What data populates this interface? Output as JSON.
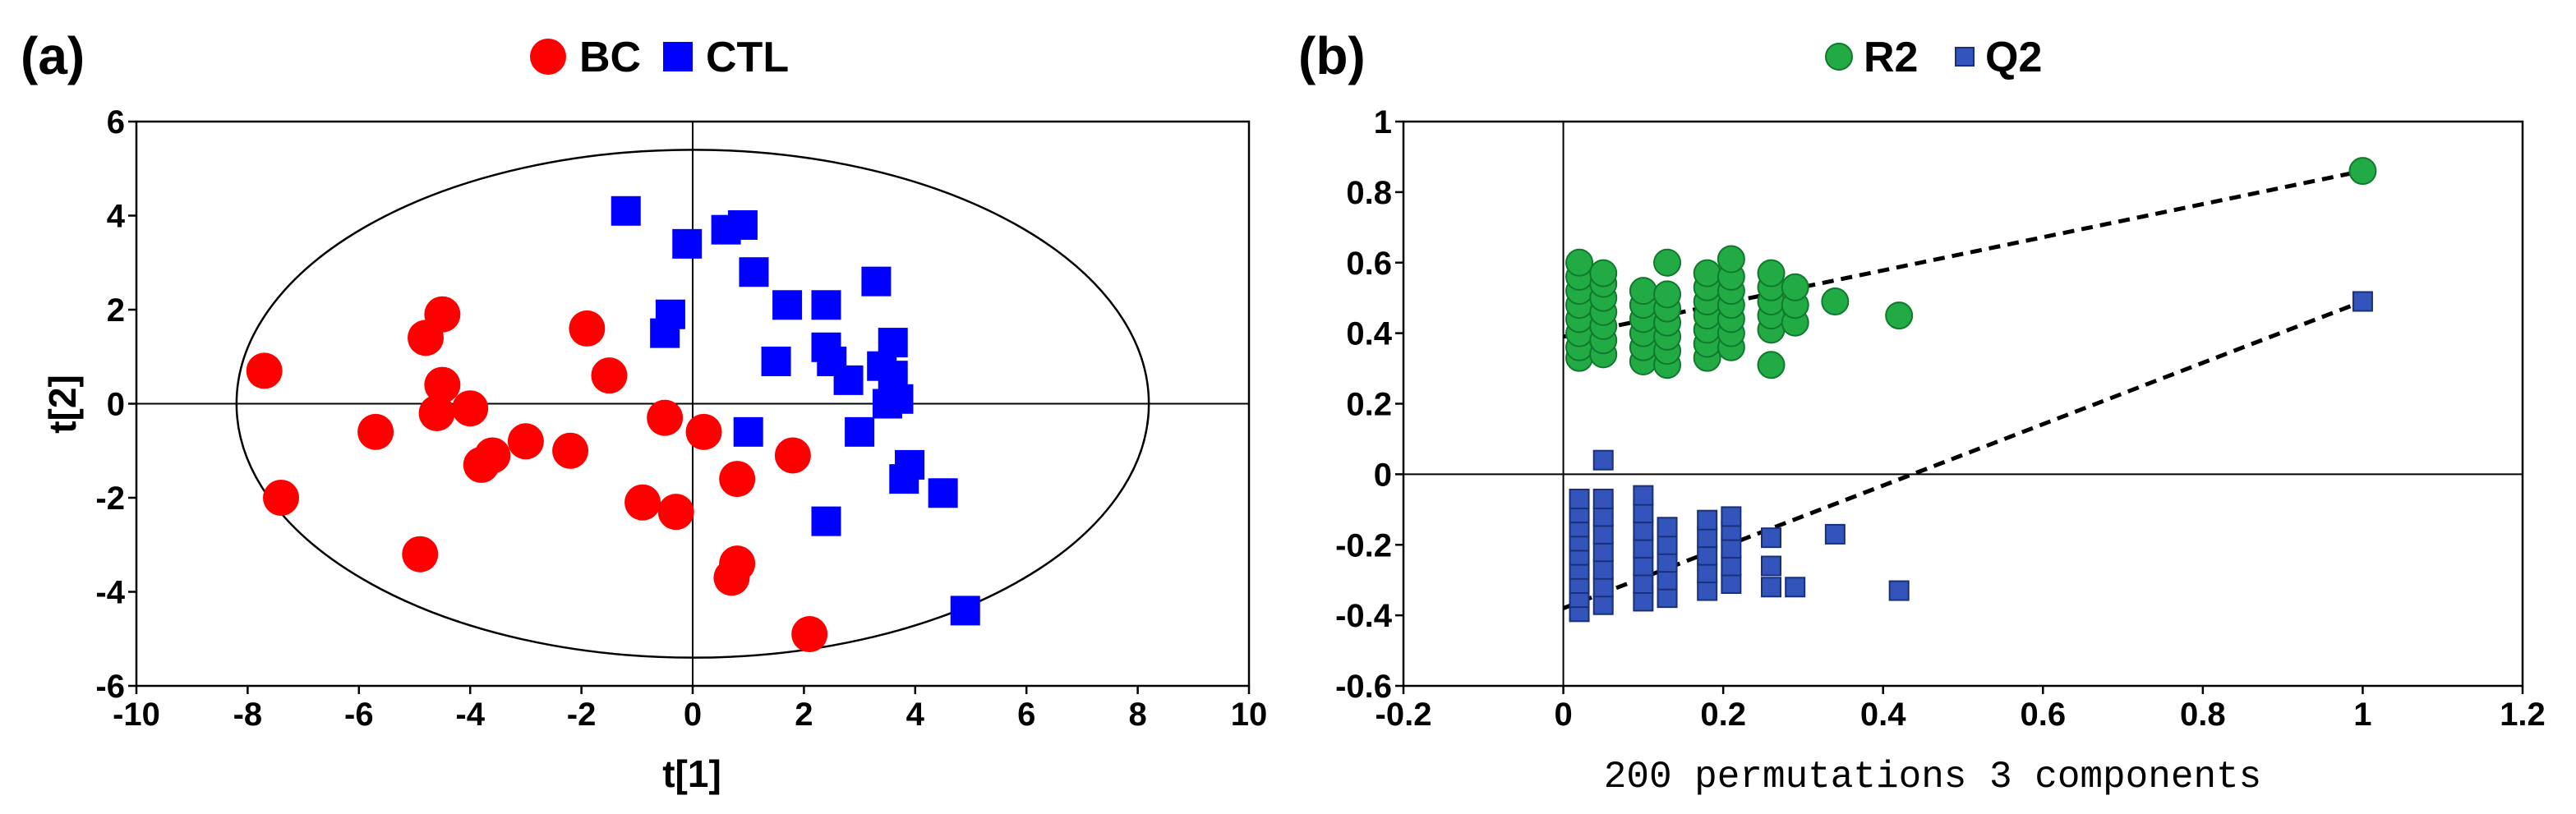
{
  "chart_data": [
    {
      "panel_label": "(a)",
      "type": "scatter",
      "xlabel": "t[1]",
      "ylabel": "t[2]",
      "xlim": [
        -10,
        10
      ],
      "ylim": [
        -6,
        6
      ],
      "xticks": [
        -10,
        -8,
        -6,
        -4,
        -2,
        0,
        2,
        4,
        6,
        8,
        10
      ],
      "yticks": [
        -6,
        -4,
        -2,
        0,
        2,
        4,
        6
      ],
      "ellipse": {
        "cx": 0,
        "cy": 0,
        "rx": 8.2,
        "ry": 5.4
      },
      "legend": [
        {
          "name": "BC",
          "color": "#ff0000",
          "marker": "circle"
        },
        {
          "name": "CTL",
          "color": "#0000ff",
          "marker": "square"
        }
      ],
      "series": [
        {
          "name": "BC",
          "color": "#ff0000",
          "marker": "circle",
          "points": [
            [
              -7.7,
              0.7
            ],
            [
              -7.4,
              -2.0
            ],
            [
              -5.7,
              -0.6
            ],
            [
              -4.9,
              -3.2
            ],
            [
              -4.8,
              1.4
            ],
            [
              -4.5,
              1.9
            ],
            [
              -4.5,
              0.4
            ],
            [
              -4.6,
              -0.2
            ],
            [
              -4.0,
              -0.1
            ],
            [
              -3.8,
              -1.3
            ],
            [
              -3.6,
              -1.1
            ],
            [
              -3.0,
              -0.8
            ],
            [
              -2.2,
              -1.0
            ],
            [
              -1.9,
              1.6
            ],
            [
              -1.5,
              0.6
            ],
            [
              -0.9,
              -2.1
            ],
            [
              -0.5,
              -0.3
            ],
            [
              -0.3,
              -2.3
            ],
            [
              0.2,
              -0.6
            ],
            [
              0.8,
              -1.6
            ],
            [
              0.8,
              -3.4
            ],
            [
              0.7,
              -3.7
            ],
            [
              1.8,
              -1.1
            ],
            [
              2.1,
              -4.9
            ]
          ]
        },
        {
          "name": "CTL",
          "color": "#0000ff",
          "marker": "square",
          "points": [
            [
              -1.2,
              4.1
            ],
            [
              -0.4,
              1.9
            ],
            [
              -0.5,
              1.5
            ],
            [
              -0.1,
              3.4
            ],
            [
              0.6,
              3.7
            ],
            [
              0.9,
              3.8
            ],
            [
              1.1,
              2.8
            ],
            [
              1.7,
              2.1
            ],
            [
              1.5,
              0.9
            ],
            [
              1.0,
              -0.6
            ],
            [
              2.4,
              2.1
            ],
            [
              2.4,
              1.2
            ],
            [
              2.5,
              0.9
            ],
            [
              2.8,
              0.5
            ],
            [
              3.0,
              -0.6
            ],
            [
              2.4,
              -2.5
            ],
            [
              3.3,
              2.6
            ],
            [
              3.4,
              0.8
            ],
            [
              3.6,
              0.6
            ],
            [
              3.6,
              1.3
            ],
            [
              3.5,
              0.0
            ],
            [
              3.7,
              0.1
            ],
            [
              3.9,
              -1.3
            ],
            [
              3.8,
              -1.6
            ],
            [
              4.5,
              -1.9
            ],
            [
              4.9,
              -4.4
            ]
          ]
        }
      ]
    },
    {
      "panel_label": "(b)",
      "type": "scatter",
      "xlabel": "200 permutations 3 components",
      "ylabel": "",
      "xlim": [
        -0.2,
        1.2
      ],
      "ylim": [
        -0.6,
        1.0
      ],
      "xticks": [
        -0.2,
        0,
        0.2,
        0.4,
        0.6,
        0.8,
        1,
        1.2
      ],
      "yticks": [
        -0.6,
        -0.4,
        -0.2,
        0,
        0.2,
        0.4,
        0.6,
        0.8,
        1
      ],
      "legend": [
        {
          "name": "R2",
          "color": "#22aa44",
          "marker": "circle"
        },
        {
          "name": "Q2",
          "color": "#3355bb",
          "marker": "square"
        }
      ],
      "regression_lines": [
        {
          "series": "R2",
          "from": [
            0,
            0.39
          ],
          "to": [
            1,
            0.86
          ]
        },
        {
          "series": "Q2",
          "from": [
            0,
            -0.38
          ],
          "to": [
            1,
            0.49
          ]
        }
      ],
      "series": [
        {
          "name": "R2",
          "color": "#22aa44",
          "marker": "circle",
          "points": [
            [
              0.02,
              0.33
            ],
            [
              0.02,
              0.36
            ],
            [
              0.02,
              0.4
            ],
            [
              0.02,
              0.44
            ],
            [
              0.02,
              0.48
            ],
            [
              0.02,
              0.52
            ],
            [
              0.02,
              0.56
            ],
            [
              0.02,
              0.6
            ],
            [
              0.05,
              0.34
            ],
            [
              0.05,
              0.38
            ],
            [
              0.05,
              0.42
            ],
            [
              0.05,
              0.46
            ],
            [
              0.05,
              0.5
            ],
            [
              0.05,
              0.54
            ],
            [
              0.05,
              0.57
            ],
            [
              0.1,
              0.32
            ],
            [
              0.1,
              0.36
            ],
            [
              0.1,
              0.4
            ],
            [
              0.1,
              0.44
            ],
            [
              0.1,
              0.48
            ],
            [
              0.1,
              0.52
            ],
            [
              0.13,
              0.31
            ],
            [
              0.13,
              0.35
            ],
            [
              0.13,
              0.39
            ],
            [
              0.13,
              0.43
            ],
            [
              0.13,
              0.47
            ],
            [
              0.13,
              0.51
            ],
            [
              0.13,
              0.6
            ],
            [
              0.18,
              0.33
            ],
            [
              0.18,
              0.37
            ],
            [
              0.18,
              0.41
            ],
            [
              0.18,
              0.45
            ],
            [
              0.18,
              0.49
            ],
            [
              0.18,
              0.53
            ],
            [
              0.18,
              0.57
            ],
            [
              0.21,
              0.36
            ],
            [
              0.21,
              0.4
            ],
            [
              0.21,
              0.44
            ],
            [
              0.21,
              0.48
            ],
            [
              0.21,
              0.52
            ],
            [
              0.21,
              0.56
            ],
            [
              0.21,
              0.61
            ],
            [
              0.26,
              0.31
            ],
            [
              0.26,
              0.41
            ],
            [
              0.26,
              0.45
            ],
            [
              0.26,
              0.49
            ],
            [
              0.26,
              0.53
            ],
            [
              0.26,
              0.57
            ],
            [
              0.29,
              0.43
            ],
            [
              0.29,
              0.48
            ],
            [
              0.29,
              0.53
            ],
            [
              0.34,
              0.49
            ],
            [
              0.42,
              0.45
            ],
            [
              1.0,
              0.86
            ]
          ]
        },
        {
          "name": "Q2",
          "color": "#3355bb",
          "marker": "square",
          "points": [
            [
              0.02,
              -0.39
            ],
            [
              0.02,
              -0.35
            ],
            [
              0.02,
              -0.31
            ],
            [
              0.02,
              -0.27
            ],
            [
              0.02,
              -0.23
            ],
            [
              0.02,
              -0.19
            ],
            [
              0.02,
              -0.15
            ],
            [
              0.02,
              -0.11
            ],
            [
              0.02,
              -0.07
            ],
            [
              0.05,
              -0.37
            ],
            [
              0.05,
              -0.32
            ],
            [
              0.05,
              -0.27
            ],
            [
              0.05,
              -0.22
            ],
            [
              0.05,
              -0.17
            ],
            [
              0.05,
              -0.12
            ],
            [
              0.05,
              -0.07
            ],
            [
              0.05,
              0.04
            ],
            [
              0.1,
              -0.36
            ],
            [
              0.1,
              -0.31
            ],
            [
              0.1,
              -0.26
            ],
            [
              0.1,
              -0.21
            ],
            [
              0.1,
              -0.16
            ],
            [
              0.1,
              -0.11
            ],
            [
              0.1,
              -0.06
            ],
            [
              0.13,
              -0.35
            ],
            [
              0.13,
              -0.3
            ],
            [
              0.13,
              -0.25
            ],
            [
              0.13,
              -0.2
            ],
            [
              0.13,
              -0.15
            ],
            [
              0.18,
              -0.33
            ],
            [
              0.18,
              -0.28
            ],
            [
              0.18,
              -0.23
            ],
            [
              0.18,
              -0.18
            ],
            [
              0.18,
              -0.13
            ],
            [
              0.21,
              -0.31
            ],
            [
              0.21,
              -0.26
            ],
            [
              0.21,
              -0.21
            ],
            [
              0.21,
              -0.16
            ],
            [
              0.21,
              -0.12
            ],
            [
              0.26,
              -0.32
            ],
            [
              0.26,
              -0.26
            ],
            [
              0.26,
              -0.18
            ],
            [
              0.29,
              -0.32
            ],
            [
              0.34,
              -0.17
            ],
            [
              0.42,
              -0.33
            ],
            [
              1.0,
              0.49
            ]
          ]
        }
      ]
    }
  ]
}
